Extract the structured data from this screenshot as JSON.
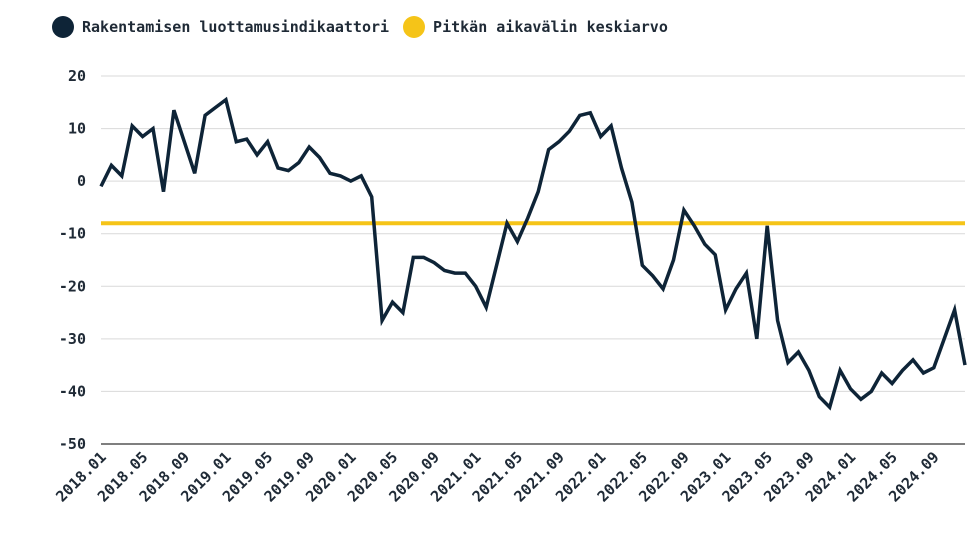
{
  "colors": {
    "series": "#0e2437",
    "average": "#f5c418",
    "grid": "#d9d9d9",
    "axis": "#555555",
    "text": "#1f2a36"
  },
  "legend": [
    {
      "label": "Rakentamisen luottamusindikaattori",
      "color": "#0e2437"
    },
    {
      "label": "Pitkän aikavälin keskiarvo",
      "color": "#f5c418"
    }
  ],
  "chart_data": {
    "type": "line",
    "title": "",
    "xlabel": "",
    "ylabel": "",
    "ylim": [
      -50,
      20
    ],
    "yticks": [
      "20",
      "10",
      "0",
      "-10",
      "-20",
      "-30",
      "-40",
      "-50"
    ],
    "ytick_values": [
      20,
      10,
      0,
      -10,
      -20,
      -30,
      -40,
      -50
    ],
    "xtick_labels": [
      "2018.01",
      "2018.05",
      "2018.09",
      "2019.01",
      "2019.05",
      "2019.09",
      "2020.01",
      "2020.05",
      "2020.09",
      "2021.01",
      "2021.05",
      "2021.09",
      "2022.01",
      "2022.05",
      "2022.09",
      "2023.01",
      "2023.05",
      "2023.09",
      "2024.01",
      "2024.05",
      "2024.09"
    ],
    "x_start": "2018.01",
    "grid": true,
    "legend_position": "top-left",
    "series": [
      {
        "name": "Rakentamisen luottamusindikaattori",
        "values": [
          -1,
          3,
          1,
          10.5,
          8.5,
          10,
          -2,
          13.5,
          7.5,
          1.5,
          12.5,
          14,
          15.5,
          7.5,
          8,
          5,
          7.5,
          2.5,
          2,
          3.5,
          6.5,
          4.5,
          1.5,
          1,
          0,
          1,
          -3,
          -26.5,
          -23,
          -25,
          -14.5,
          -14.5,
          -15.5,
          -17,
          -17.5,
          -17.5,
          -20,
          -24,
          -16,
          -8,
          -11.5,
          -7,
          -2,
          6,
          7.5,
          9.5,
          12.5,
          13,
          8.5,
          10.5,
          2.5,
          -4,
          -16,
          -18,
          -20.5,
          -15,
          -5.5,
          -8.5,
          -12,
          -14,
          -24.5,
          -20.5,
          -17.5,
          -30,
          -8.5,
          -26.5,
          -34.5,
          -32.5,
          -36,
          -41,
          -43,
          -36,
          -39.5,
          -41.5,
          -40,
          -36.5,
          -38.5,
          -36,
          -34,
          -36.5,
          -35.5,
          -30,
          -24.5,
          -35
        ]
      },
      {
        "name": "Pitkän aikavälin keskiarvo",
        "constant": -8
      }
    ]
  }
}
